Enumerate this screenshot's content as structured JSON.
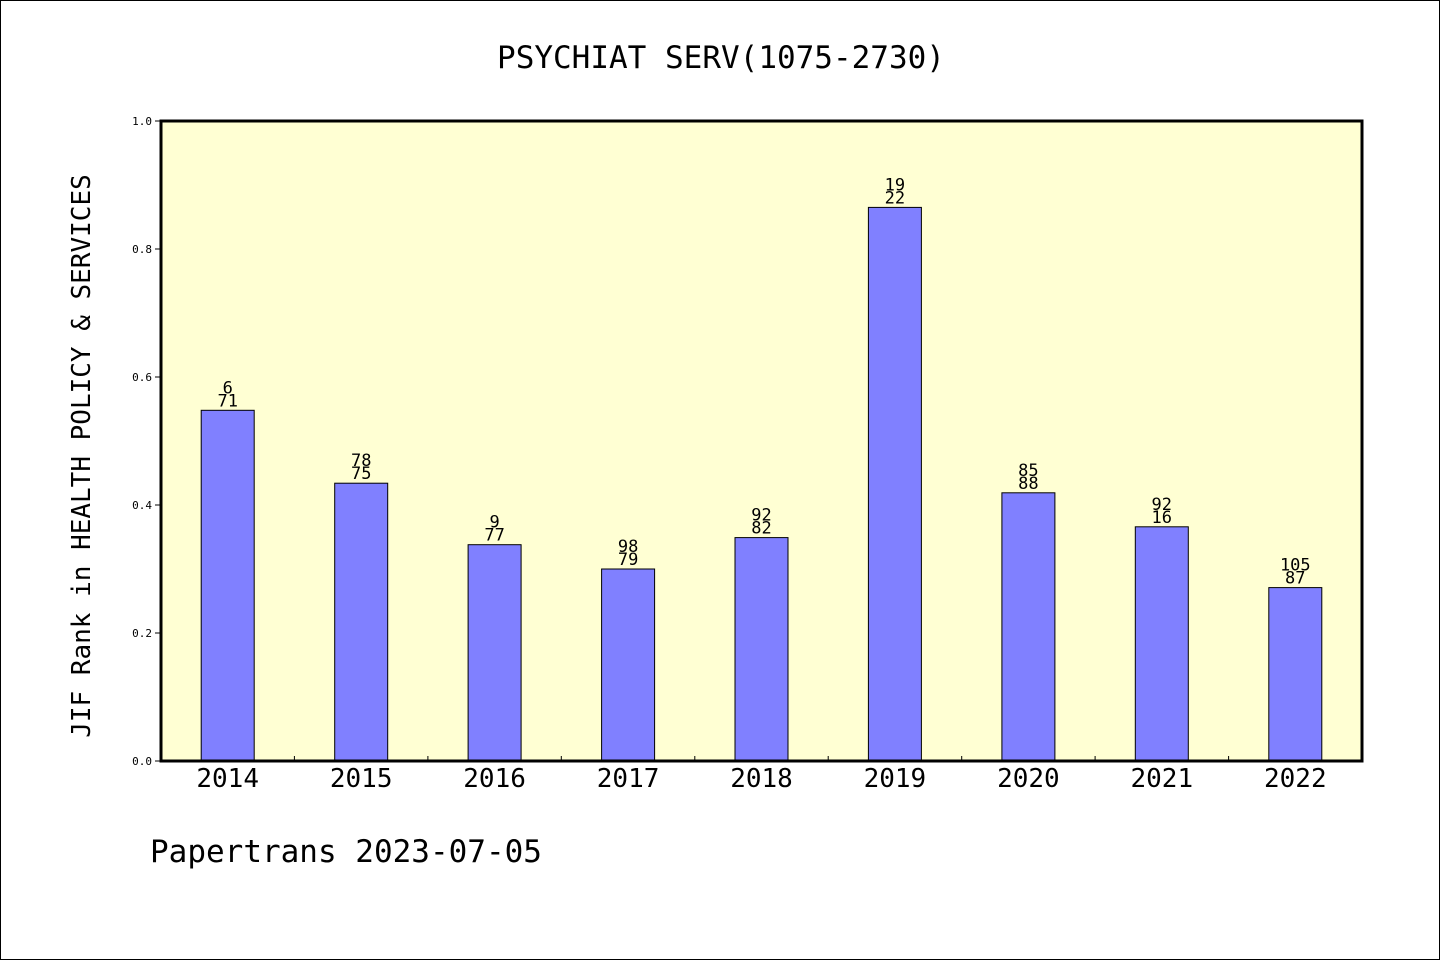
{
  "chart_data": {
    "type": "bar",
    "title": "PSYCHIAT SERV(1075-2730)",
    "ylabel": "JIF Rank in HEALTH POLICY & SERVICES",
    "xlabel": "",
    "categories": [
      "2014",
      "2015",
      "2016",
      "2017",
      "2018",
      "2019",
      "2020",
      "2021",
      "2022"
    ],
    "values": [
      0.548,
      0.434,
      0.338,
      0.3,
      0.349,
      0.865,
      0.419,
      0.366,
      0.271
    ],
    "bar_labels_top": [
      "6",
      "78",
      "9",
      "98",
      "92",
      "19",
      "85",
      "92",
      "105"
    ],
    "bar_labels_bottom": [
      "71",
      "75",
      "77",
      "79",
      "82",
      "22",
      "88",
      "16",
      "87"
    ],
    "ylim": [
      0,
      1.0
    ],
    "yticks": [
      "0.0",
      "0.2",
      "0.4",
      "0.6",
      "0.8",
      "1.0"
    ],
    "grid": false,
    "colors": {
      "bar": "#8080ff",
      "plot_background": "#ffffd3"
    }
  },
  "footer": {
    "text": "Papertrans 2023-07-05"
  }
}
